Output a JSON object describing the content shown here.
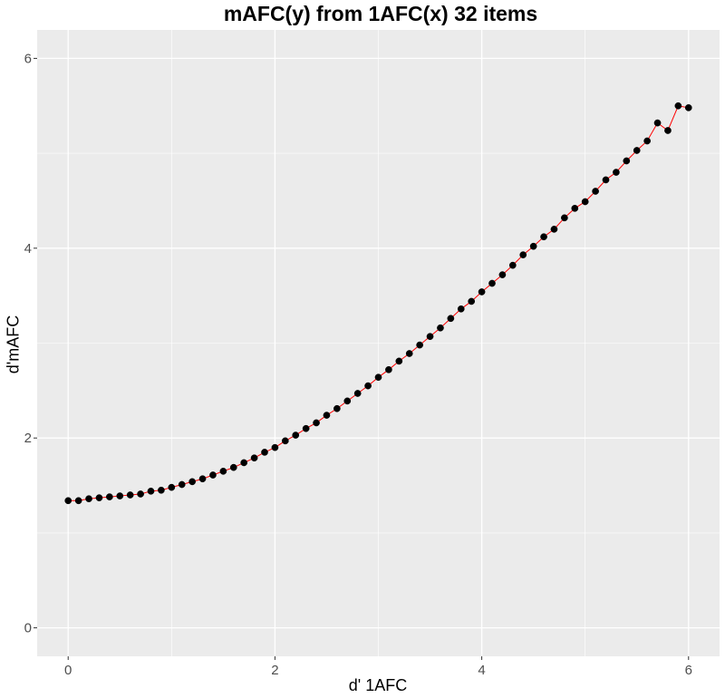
{
  "chart_data": {
    "type": "line",
    "title": "mAFC(y) from 1AFC(x) 32 items",
    "xlabel": "d' 1AFC",
    "ylabel": "d'mAFC",
    "xlim": [
      -0.3,
      6.3
    ],
    "ylim": [
      -0.3,
      6.3
    ],
    "x_ticks": [
      0,
      2,
      4,
      6
    ],
    "y_ticks": [
      0,
      2,
      4,
      6
    ],
    "x_tick_labels": [
      "0",
      "2",
      "4",
      "6"
    ],
    "y_tick_labels": [
      "0",
      "2",
      "4",
      "6"
    ],
    "grid": true,
    "legend": "none",
    "colors": {
      "panel_background": "#ebebeb",
      "grid_major": "#ffffff",
      "line": "#ff0000",
      "points": "#000000"
    },
    "series": [
      {
        "x": [
          0.0,
          0.1,
          0.2,
          0.3,
          0.4,
          0.5,
          0.6,
          0.7,
          0.8,
          0.9,
          1.0,
          1.1,
          1.2,
          1.3,
          1.4,
          1.5,
          1.6,
          1.7,
          1.8,
          1.9,
          2.0,
          2.1,
          2.2,
          2.3,
          2.4,
          2.5,
          2.6,
          2.7,
          2.8,
          2.9,
          3.0,
          3.1,
          3.2,
          3.3,
          3.4,
          3.5,
          3.6,
          3.7,
          3.8,
          3.9,
          4.0,
          4.1,
          4.2,
          4.3,
          4.4,
          4.5,
          4.6,
          4.7,
          4.8,
          4.9,
          5.0,
          5.1,
          5.2,
          5.3,
          5.4,
          5.5,
          5.6,
          5.7,
          5.8,
          5.9,
          6.0
        ],
        "y": [
          1.34,
          1.34,
          1.36,
          1.37,
          1.38,
          1.39,
          1.4,
          1.41,
          1.44,
          1.45,
          1.48,
          1.51,
          1.54,
          1.57,
          1.61,
          1.65,
          1.69,
          1.74,
          1.79,
          1.85,
          1.9,
          1.97,
          2.03,
          2.1,
          2.16,
          2.24,
          2.31,
          2.39,
          2.47,
          2.55,
          2.64,
          2.72,
          2.81,
          2.89,
          2.98,
          3.07,
          3.16,
          3.26,
          3.36,
          3.44,
          3.54,
          3.63,
          3.72,
          3.82,
          3.93,
          4.02,
          4.12,
          4.2,
          4.32,
          4.42,
          4.49,
          4.6,
          4.72,
          4.8,
          4.92,
          5.03,
          5.13,
          5.32,
          5.24,
          5.5,
          5.48
        ]
      }
    ]
  }
}
